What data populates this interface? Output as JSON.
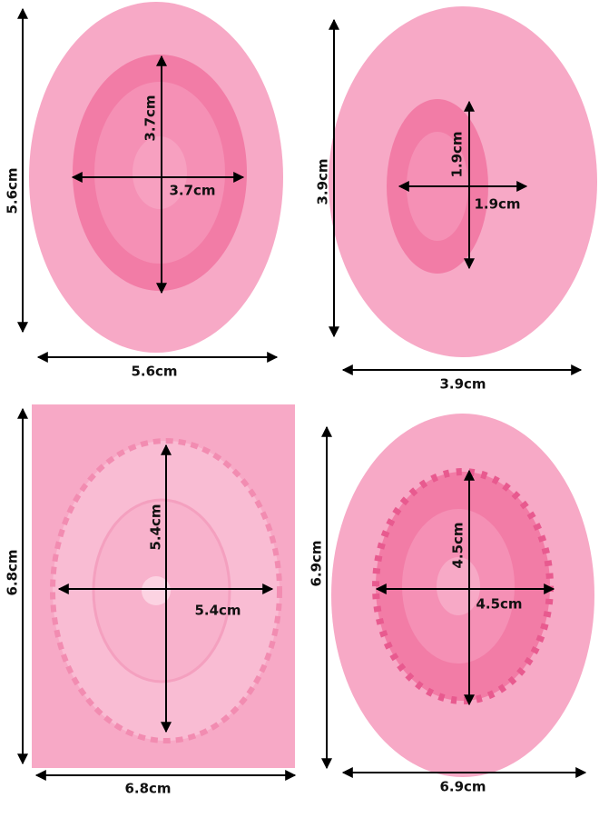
{
  "molds": [
    {
      "outer_height": "5.6cm",
      "outer_width": "5.6cm",
      "inner_height": "3.7cm",
      "inner_width": "3.7cm"
    },
    {
      "outer_height": "3.9cm",
      "outer_width": "3.9cm",
      "inner_height": "1.9cm",
      "inner_width": "1.9cm"
    },
    {
      "outer_height": "6.8cm",
      "outer_width": "6.8cm",
      "inner_height": "5.4cm",
      "inner_width": "5.4cm"
    },
    {
      "outer_height": "6.9cm",
      "outer_width": "6.9cm",
      "inner_height": "4.5cm",
      "inner_width": "4.5cm"
    }
  ]
}
